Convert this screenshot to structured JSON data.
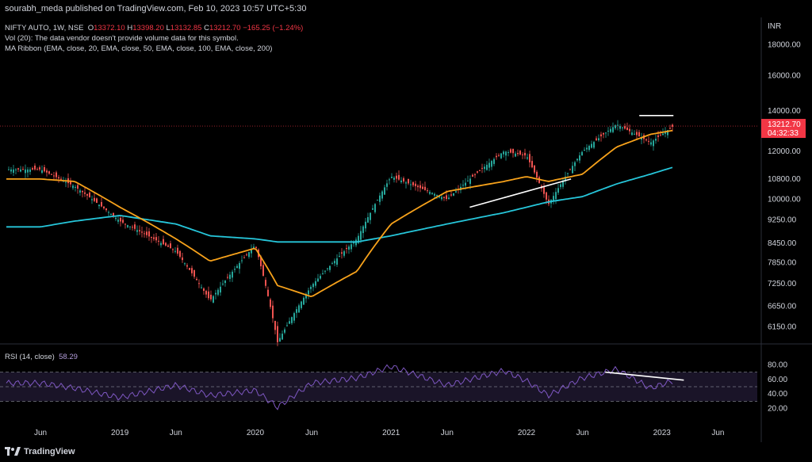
{
  "header": {
    "publisher_line": "sourabh_meda published on TradingView.com, Feb 10, 2023 10:57 UTC+5:30"
  },
  "legend": {
    "symbol": "NIFTY AUTO, 1W, NSE",
    "open_label": "O",
    "open": "13372.10",
    "high_label": "H",
    "high": "13398.20",
    "low_label": "L",
    "low": "13132.85",
    "close_label": "C",
    "close": "13212.70",
    "change": "−165.25 (−1.24%)",
    "vol_line": "Vol (20): The data vendor doesn't provide volume data for this symbol.",
    "ma_line": "MA Ribbon (EMA, close, 20, EMA, close, 50, EMA, close, 100, EMA, close, 200)",
    "rsi_label": "RSI (14, close)",
    "rsi_value": "58.29"
  },
  "price_axis": {
    "currency": "INR",
    "labels": [
      "18000.00",
      "16000.00",
      "14000.00",
      "12000.00",
      "10800.00",
      "10000.00",
      "9250.00",
      "8450.00",
      "7850.00",
      "7250.00",
      "6650.00",
      "6150.00"
    ],
    "last_price_tag": "13212.70",
    "countdown_tag": "04:32:33"
  },
  "rsi_axis": {
    "labels": [
      "80.00",
      "60.00",
      "40.00",
      "20.00"
    ]
  },
  "time_axis": {
    "labels": [
      "Jun",
      "2019",
      "Jun",
      "2020",
      "Jun",
      "2021",
      "Jun",
      "2022",
      "Jun",
      "2023",
      "Jun"
    ]
  },
  "footer": {
    "brand": "TradingView"
  },
  "colors": {
    "up": "#26a69a",
    "down": "#ef5350",
    "ema_short": "#f7a21b",
    "ema_long": "#26c6da",
    "rsi": "#7e57c2",
    "trendline": "#ffffff",
    "price_tag": "#f23645"
  },
  "chart_data": {
    "type": "line",
    "title": "NIFTY AUTO, 1W, NSE",
    "ylabel": "INR",
    "ylim": [
      5800,
      19500
    ],
    "y_scale": "log",
    "x": [
      "2018-06",
      "2018-09",
      "2019-01",
      "2019-06",
      "2019-09",
      "2020-01",
      "2020-03",
      "2020-06",
      "2020-10",
      "2021-01",
      "2021-06",
      "2021-11",
      "2022-01",
      "2022-03",
      "2022-06",
      "2022-09",
      "2022-12",
      "2023-02"
    ],
    "series": [
      {
        "name": "NIFTY AUTO",
        "values": [
          11200,
          10500,
          9200,
          8200,
          6800,
          8400,
          5800,
          7200,
          8600,
          10900,
          10000,
          12000,
          11800,
          9800,
          12000,
          13300,
          12400,
          13212.7
        ]
      },
      {
        "name": "EMA 20",
        "values": [
          10800,
          10700,
          9700,
          8600,
          7900,
          8300,
          7200,
          6900,
          7600,
          9100,
          10300,
          10700,
          10900,
          10700,
          11000,
          12200,
          12800,
          13000
        ]
      },
      {
        "name": "EMA 50",
        "values": [
          9000,
          9200,
          9400,
          9100,
          8700,
          8600,
          8500,
          8500,
          8500,
          8700,
          9100,
          9500,
          9700,
          9900,
          10100,
          10600,
          11000,
          11300
        ]
      }
    ],
    "rsi": {
      "name": "RSI (14, close)",
      "ylim": [
        0,
        100
      ],
      "values": [
        55,
        48,
        35,
        52,
        38,
        45,
        22,
        55,
        62,
        78,
        52,
        72,
        58,
        38,
        62,
        74,
        48,
        58.29
      ]
    },
    "annotations": [
      {
        "type": "trendline",
        "from": [
          "2021-08",
          9700
        ],
        "to": [
          "2022-05",
          10800
        ]
      },
      {
        "type": "horizontal",
        "from": [
          "2022-11",
          13750
        ],
        "to": [
          "2023-02",
          13750
        ]
      },
      {
        "type": "rsi-trendline",
        "from": [
          "2022-08",
          70
        ],
        "to": [
          "2023-03",
          59
        ]
      }
    ]
  }
}
